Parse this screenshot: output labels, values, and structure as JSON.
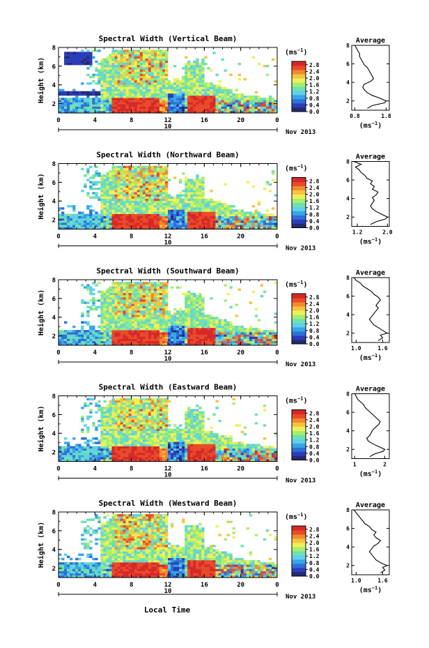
{
  "figure": {
    "bottom_xlabel": "Local Time",
    "date_label": "Nov 2013",
    "colorbar_unit_base": "(ms",
    "colorbar_unit_exp": "−1",
    "colorbar_unit_close": ")",
    "profile_title": "Average"
  },
  "colors": {
    "colormap": [
      "#252a6e",
      "#2b3db8",
      "#2f6fd6",
      "#35a6e8",
      "#5fd0e6",
      "#6fe0b0",
      "#a6ee6e",
      "#eef05a",
      "#f7c33f",
      "#f08a2e",
      "#e84a2a",
      "#d62828"
    ],
    "missing": "#ffffff"
  },
  "chart_data": [
    {
      "type": "heatmap",
      "title": "Spectral Width (Vertical Beam)",
      "ylabel": "Height (km)",
      "yticks": [
        "2",
        "4",
        "6",
        "8"
      ],
      "ylim": [
        1,
        8
      ],
      "xticks": [
        "0",
        "4",
        "8",
        "12",
        "16",
        "20",
        "0"
      ],
      "xlim_hours": [
        0,
        24
      ],
      "day_label": "10",
      "colorbar_ticks": [
        "0.0",
        "0.4",
        "0.8",
        "1.2",
        "1.6",
        "2.0",
        "2.4",
        "2.8"
      ],
      "colorbar_range": [
        0,
        3.0
      ],
      "profile": {
        "xticks": [
          "0.8",
          "1.8"
        ],
        "xlim": [
          0.7,
          1.9
        ],
        "yticks": [
          "2",
          "4",
          "6",
          "8"
        ],
        "ylim": [
          1,
          8
        ],
        "xlabel_base": "(ms",
        "xlabel_exp": "−1",
        "xlabel_close": ")",
        "heights": [
          1.2,
          1.5,
          1.8,
          2.0,
          2.3,
          2.6,
          2.9,
          3.2,
          3.5,
          3.8,
          4.1,
          4.4,
          4.7,
          5.0,
          5.3,
          5.6,
          5.9,
          6.2,
          6.5,
          6.8,
          7.1,
          7.4,
          7.7,
          8.0
        ],
        "values": [
          1.2,
          1.35,
          1.75,
          1.8,
          1.6,
          1.35,
          1.2,
          1.1,
          1.05,
          1.1,
          1.3,
          1.4,
          1.35,
          1.3,
          1.25,
          1.2,
          1.1,
          1.05,
          1.0,
          0.95,
          0.95,
          0.9,
          0.85,
          0.8
        ]
      }
    },
    {
      "type": "heatmap",
      "title": "Spectral Width (Northward Beam)",
      "ylabel": "Height (km)",
      "yticks": [
        "2",
        "4",
        "6",
        "8"
      ],
      "ylim": [
        1,
        8
      ],
      "xticks": [
        "0",
        "4",
        "8",
        "12",
        "16",
        "20",
        "0"
      ],
      "xlim_hours": [
        0,
        24
      ],
      "day_label": "10",
      "colorbar_ticks": [
        "0.0",
        "0.4",
        "0.8",
        "1.2",
        "1.6",
        "2.0",
        "2.4",
        "2.8"
      ],
      "colorbar_range": [
        0,
        3.0
      ],
      "profile": {
        "xticks": [
          "1.2",
          "2.0"
        ],
        "xlim": [
          1.05,
          2.05
        ],
        "yticks": [
          "2",
          "4",
          "6",
          "8"
        ],
        "ylim": [
          1,
          8
        ],
        "xlabel_base": "(ms",
        "xlabel_exp": "−1",
        "xlabel_close": ")",
        "heights": [
          1.2,
          1.5,
          1.8,
          2.0,
          2.3,
          2.6,
          2.9,
          3.2,
          3.5,
          3.8,
          4.1,
          4.4,
          4.7,
          5.0,
          5.3,
          5.6,
          5.9,
          6.2,
          6.5,
          6.8,
          7.1,
          7.4,
          7.7,
          8.0
        ],
        "values": [
          1.55,
          1.7,
          1.95,
          2.0,
          1.85,
          1.7,
          1.6,
          1.55,
          1.6,
          1.65,
          1.6,
          1.7,
          1.75,
          1.6,
          1.65,
          1.55,
          1.6,
          1.45,
          1.4,
          1.3,
          1.25,
          1.15,
          1.3,
          1.1
        ]
      }
    },
    {
      "type": "heatmap",
      "title": "Spectral Width (Southward Beam)",
      "ylabel": "Height (km)",
      "yticks": [
        "2",
        "4",
        "6",
        "8"
      ],
      "ylim": [
        1,
        8
      ],
      "xticks": [
        "0",
        "4",
        "8",
        "12",
        "16",
        "20",
        "0"
      ],
      "xlim_hours": [
        0,
        24
      ],
      "day_label": "10",
      "colorbar_ticks": [
        "0.0",
        "0.4",
        "0.8",
        "1.2",
        "1.6",
        "2.0",
        "2.4",
        "2.8"
      ],
      "colorbar_range": [
        0,
        3.0
      ],
      "profile": {
        "xticks": [
          "1.0",
          "1.6"
        ],
        "xlim": [
          0.9,
          1.75
        ],
        "yticks": [
          "2",
          "4",
          "6",
          "8"
        ],
        "ylim": [
          1,
          8
        ],
        "xlabel_base": "(ms",
        "xlabel_exp": "−1",
        "xlabel_close": ")",
        "heights": [
          1.2,
          1.5,
          1.8,
          2.0,
          2.3,
          2.6,
          2.9,
          3.2,
          3.5,
          3.8,
          4.1,
          4.4,
          4.7,
          5.0,
          5.3,
          5.6,
          5.9,
          6.2,
          6.5,
          6.8,
          7.1,
          7.4,
          7.7,
          8.0
        ],
        "values": [
          1.5,
          1.6,
          1.55,
          1.7,
          1.6,
          1.5,
          1.4,
          1.35,
          1.3,
          1.35,
          1.4,
          1.45,
          1.5,
          1.45,
          1.5,
          1.55,
          1.5,
          1.4,
          1.35,
          1.25,
          1.15,
          1.1,
          1.0,
          0.95
        ]
      }
    },
    {
      "type": "heatmap",
      "title": "Spectral Width (Eastward Beam)",
      "ylabel": "Height (km)",
      "yticks": [
        "2",
        "4",
        "6",
        "8"
      ],
      "ylim": [
        1,
        8
      ],
      "xticks": [
        "0",
        "4",
        "8",
        "12",
        "16",
        "20",
        "0"
      ],
      "xlim_hours": [
        0,
        24
      ],
      "day_label": "10",
      "colorbar_ticks": [
        "0.0",
        "0.4",
        "0.8",
        "1.2",
        "1.6",
        "2.0",
        "2.4",
        "2.8"
      ],
      "colorbar_range": [
        0,
        3.0
      ],
      "profile": {
        "xticks": [
          "1",
          "2"
        ],
        "xlim": [
          0.9,
          2.15
        ],
        "yticks": [
          "2",
          "4",
          "6",
          "8"
        ],
        "ylim": [
          1,
          8
        ],
        "xlabel_base": "(ms",
        "xlabel_exp": "−1",
        "xlabel_close": ")",
        "heights": [
          1.2,
          1.5,
          1.8,
          2.0,
          2.3,
          2.6,
          2.9,
          3.2,
          3.5,
          3.8,
          4.1,
          4.4,
          4.7,
          5.0,
          5.3,
          5.6,
          5.9,
          6.2,
          6.5,
          6.8,
          7.1,
          7.4,
          7.7,
          8.0
        ],
        "values": [
          1.5,
          1.65,
          1.95,
          2.0,
          1.8,
          1.6,
          1.45,
          1.4,
          1.5,
          1.55,
          1.6,
          1.7,
          1.8,
          1.85,
          1.75,
          1.65,
          1.55,
          1.45,
          1.35,
          1.3,
          1.2,
          1.1,
          1.05,
          1.0
        ]
      }
    },
    {
      "type": "heatmap",
      "title": "Spectral Width (Westward Beam)",
      "ylabel": "Height (km)",
      "yticks": [
        "2",
        "4",
        "6",
        "8"
      ],
      "ylim": [
        1,
        8
      ],
      "xticks": [
        "0",
        "4",
        "8",
        "12",
        "16",
        "20",
        "0"
      ],
      "xlim_hours": [
        0,
        24
      ],
      "day_label": "10",
      "colorbar_ticks": [
        "0.0",
        "0.4",
        "0.8",
        "1.2",
        "1.6",
        "2.0",
        "2.4",
        "2.8"
      ],
      "colorbar_range": [
        0,
        3.0
      ],
      "profile": {
        "xticks": [
          "1.0",
          "1.6"
        ],
        "xlim": [
          0.9,
          1.75
        ],
        "yticks": [
          "2",
          "4",
          "6",
          "8"
        ],
        "ylim": [
          1,
          8
        ],
        "xlabel_base": "(ms",
        "xlabel_exp": "−1",
        "xlabel_close": ")",
        "heights": [
          1.2,
          1.5,
          1.8,
          2.0,
          2.3,
          2.6,
          2.9,
          3.2,
          3.5,
          3.8,
          4.1,
          4.4,
          4.7,
          5.0,
          5.3,
          5.6,
          5.9,
          6.2,
          6.5,
          6.8,
          7.1,
          7.4,
          7.7,
          8.0
        ],
        "values": [
          1.55,
          1.65,
          1.6,
          1.7,
          1.55,
          1.45,
          1.4,
          1.35,
          1.3,
          1.35,
          1.4,
          1.5,
          1.55,
          1.45,
          1.4,
          1.45,
          1.35,
          1.3,
          1.2,
          1.15,
          1.1,
          1.05,
          1.0,
          0.95
        ]
      }
    }
  ]
}
